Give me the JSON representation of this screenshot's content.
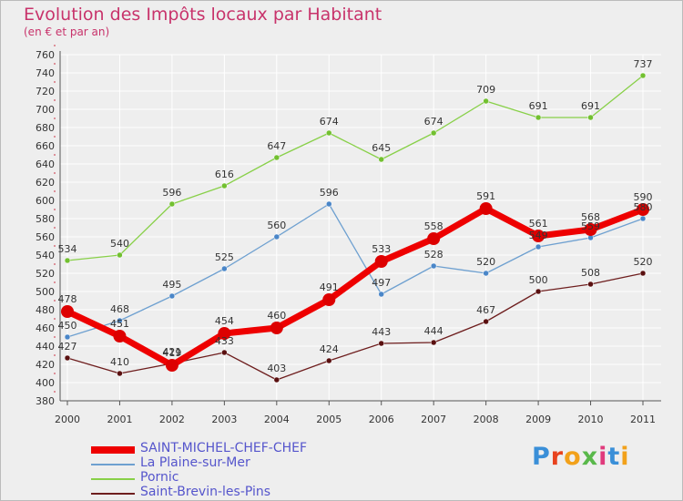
{
  "title": "Evolution des Impôts locaux par Habitant",
  "subtitle": "(en € et par an)",
  "chart_data": {
    "type": "line",
    "title": "Evolution des Impôts locaux par Habitant",
    "subtitle": "(en € et par an)",
    "categories": [
      "2000",
      "2001",
      "2002",
      "2003",
      "2004",
      "2005",
      "2006",
      "2007",
      "2008",
      "2009",
      "2010",
      "2011"
    ],
    "ylim": [
      380,
      760
    ],
    "ytick_step": 20,
    "grid": true,
    "legend": "bottom-left",
    "series": [
      {
        "name": "SAINT-MICHEL-CHEF-CHEF",
        "color": "#ee0000",
        "values": [
          478,
          451,
          419,
          454,
          460,
          491,
          533,
          558,
          591,
          561,
          568,
          590
        ]
      },
      {
        "name": "La Plaine-sur-Mer",
        "color": "#6ea0d0",
        "values": [
          450,
          468,
          495,
          525,
          560,
          596,
          497,
          528,
          520,
          549,
          559,
          580
        ]
      },
      {
        "name": "Pornic",
        "color": "#88d048",
        "values": [
          534,
          540,
          596,
          616,
          647,
          674,
          645,
          674,
          709,
          691,
          691,
          737
        ]
      },
      {
        "name": "Saint-Brevin-les-Pins",
        "color": "#6e1e1e",
        "values": [
          427,
          410,
          421,
          433,
          403,
          424,
          443,
          444,
          467,
          500,
          508,
          520
        ]
      }
    ]
  },
  "legend": {
    "items": [
      {
        "label": "SAINT-MICHEL-CHEF-CHEF",
        "color": "#ee0000"
      },
      {
        "label": "La Plaine-sur-Mer",
        "color": "#6ea0d0"
      },
      {
        "label": "Pornic",
        "color": "#88d048"
      },
      {
        "label": "Saint-Brevin-les-Pins",
        "color": "#6e1e1e"
      }
    ]
  },
  "logo": {
    "text": "Proxiti",
    "letter_colors": [
      "#3a8fd8",
      "#e8431e",
      "#f2a11a",
      "#59b84a",
      "#e03a7c",
      "#3a8fd8",
      "#f2a11a"
    ]
  }
}
